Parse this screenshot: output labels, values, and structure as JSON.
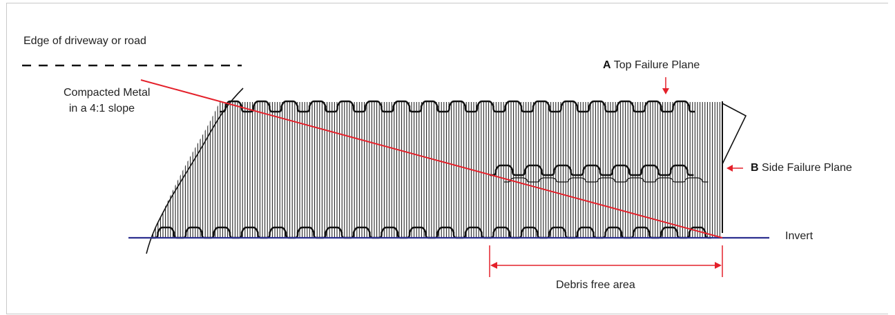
{
  "labels": {
    "edge": "Edge of driveway or road",
    "compacted_line1": "Compacted Metal",
    "compacted_line2": "in a 4:1 slope",
    "top_letter": "A",
    "top_text": "Top Failure Plane",
    "side_letter": "B",
    "side_text": "Side Failure Plane",
    "invert": "Invert",
    "debris": "Debris free area"
  },
  "colors": {
    "accent": "#e4202a",
    "invert_line": "#2b2f8f",
    "ink": "#111111",
    "frame": "#c8c8c8"
  }
}
